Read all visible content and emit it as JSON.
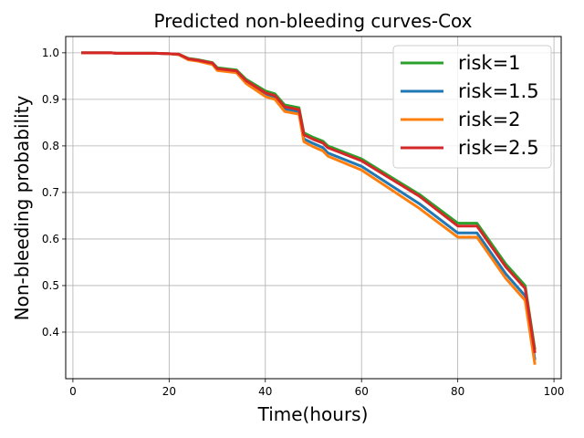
{
  "chart_data": {
    "type": "line",
    "title": "Predicted non-bleeding curves-Cox",
    "xlabel": "Time(hours)",
    "ylabel": "Non-bleeding probability",
    "xlim": [
      -1.5,
      101.5
    ],
    "ylim": [
      0.3,
      1.035
    ],
    "xticks": [
      0,
      20,
      40,
      60,
      80,
      100
    ],
    "yticks": [
      0.4,
      0.5,
      0.6,
      0.7,
      0.8,
      0.9,
      1.0
    ],
    "xtick_labels": [
      "0",
      "20",
      "40",
      "60",
      "80",
      "100"
    ],
    "ytick_labels": [
      "0.4",
      "0.5",
      "0.6",
      "0.7",
      "0.8",
      "0.9",
      "1.0"
    ],
    "grid": true,
    "legend_position": "top-right",
    "x": [
      2,
      8,
      9,
      17,
      20,
      22,
      24,
      26,
      28,
      29,
      30,
      34,
      36,
      40,
      42,
      44,
      47,
      48,
      50,
      52,
      53,
      60,
      66,
      72,
      80,
      84,
      90,
      94,
      96
    ],
    "series": [
      {
        "name": "risk=1",
        "color": "#2ca02c",
        "values": [
          1.0,
          1.0,
          0.999,
          0.999,
          0.998,
          0.997,
          0.988,
          0.985,
          0.981,
          0.979,
          0.968,
          0.963,
          0.943,
          0.918,
          0.912,
          0.888,
          0.882,
          0.828,
          0.818,
          0.81,
          0.8,
          0.772,
          0.734,
          0.696,
          0.634,
          0.634,
          0.546,
          0.5,
          0.365
        ]
      },
      {
        "name": "risk=1.5",
        "color": "#1f77b4",
        "values": [
          1.0,
          1.0,
          0.999,
          0.999,
          0.998,
          0.996,
          0.986,
          0.983,
          0.978,
          0.976,
          0.964,
          0.959,
          0.937,
          0.91,
          0.904,
          0.879,
          0.873,
          0.815,
          0.805,
          0.796,
          0.785,
          0.756,
          0.716,
          0.676,
          0.613,
          0.613,
          0.525,
          0.478,
          0.343
        ]
      },
      {
        "name": "risk=2",
        "color": "#ff7f0e",
        "values": [
          1.0,
          1.0,
          0.999,
          0.999,
          0.998,
          0.996,
          0.985,
          0.982,
          0.977,
          0.975,
          0.962,
          0.957,
          0.934,
          0.906,
          0.9,
          0.874,
          0.868,
          0.809,
          0.798,
          0.789,
          0.778,
          0.748,
          0.707,
          0.666,
          0.604,
          0.604,
          0.515,
          0.468,
          0.333
        ]
      },
      {
        "name": "risk=2.5",
        "color": "#d62728",
        "values": [
          1.0,
          1.0,
          0.999,
          0.999,
          0.998,
          0.997,
          0.987,
          0.984,
          0.98,
          0.978,
          0.966,
          0.961,
          0.94,
          0.914,
          0.908,
          0.884,
          0.878,
          0.824,
          0.814,
          0.806,
          0.796,
          0.768,
          0.73,
          0.692,
          0.628,
          0.628,
          0.54,
          0.494,
          0.358
        ]
      }
    ]
  }
}
